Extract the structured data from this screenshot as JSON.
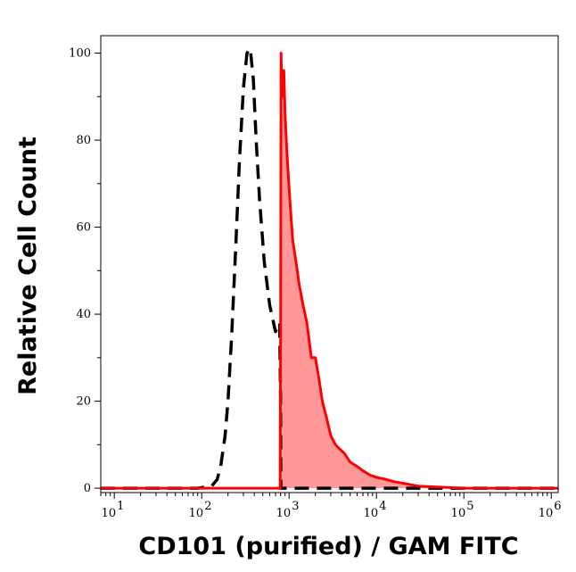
{
  "chart_data": {
    "type": "area",
    "xlabel": "CD101 (purified) / GAM FITC",
    "ylabel": "Relative Cell Count",
    "xscale": "log",
    "xlim": [
      7,
      1200000
    ],
    "ylim": [
      -1,
      104
    ],
    "xticks": [
      {
        "value": 10,
        "base": "10",
        "exp": "1"
      },
      {
        "value": 100,
        "base": "10",
        "exp": "2"
      },
      {
        "value": 1000,
        "base": "10",
        "exp": "3"
      },
      {
        "value": 10000,
        "base": "10",
        "exp": "4"
      },
      {
        "value": 100000,
        "base": "10",
        "exp": "5"
      },
      {
        "value": 1000000,
        "base": "10",
        "exp": "6"
      }
    ],
    "yticks": [
      0,
      20,
      40,
      60,
      80,
      100
    ],
    "series": [
      {
        "style": "dashed",
        "color": "#000000",
        "fill": false,
        "x": [
          7,
          90,
          130,
          150,
          165,
          185,
          200,
          220,
          245,
          270,
          300,
          330,
          360,
          390,
          420,
          460,
          520,
          600,
          700,
          780,
          800,
          805,
          1000,
          2000,
          5000,
          20000,
          100000,
          1200000
        ],
        "y": [
          0,
          0,
          0.5,
          2,
          5,
          12,
          20,
          35,
          55,
          75,
          92,
          100,
          101,
          94,
          80,
          66,
          52,
          42,
          36,
          38,
          20,
          0,
          0,
          0,
          0,
          0,
          0,
          0
        ]
      },
      {
        "style": "solid",
        "color": "#ff0000",
        "fill": true,
        "fill_color": "#ff9999",
        "x": [
          7,
          500,
          790,
          800,
          810,
          830,
          870,
          900,
          940,
          980,
          1030,
          1100,
          1200,
          1300,
          1450,
          1600,
          1800,
          2000,
          2200,
          2400,
          2700,
          3000,
          3400,
          3800,
          4300,
          5000,
          6000,
          7000,
          8500,
          10000,
          13000,
          16000,
          22000,
          30000,
          50000,
          100000,
          1200000
        ],
        "y": [
          0,
          0,
          0,
          35,
          100,
          90,
          96,
          86,
          78,
          72,
          65,
          57,
          52,
          47,
          42,
          38,
          30,
          30,
          25,
          20,
          16,
          12,
          10,
          9,
          8,
          6,
          5,
          4,
          3,
          2.5,
          2,
          1.5,
          1,
          0.5,
          0.3,
          0,
          0
        ]
      }
    ]
  }
}
